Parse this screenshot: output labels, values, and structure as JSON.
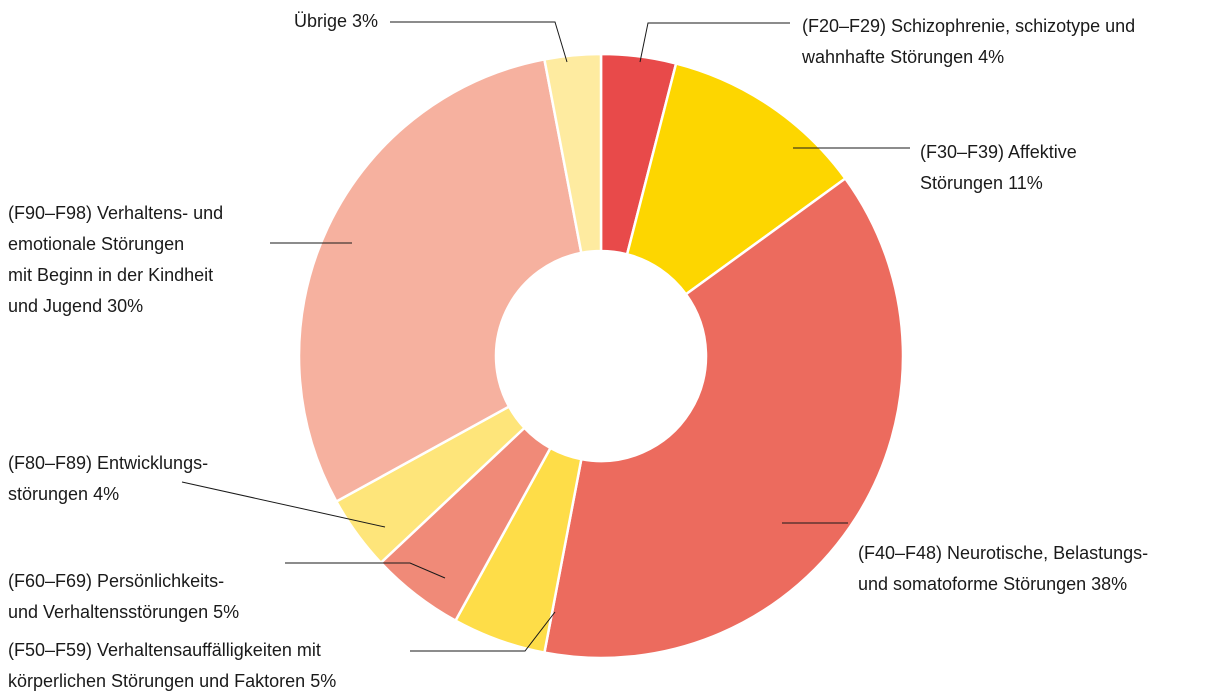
{
  "chart_data": {
    "type": "donut",
    "categories": [
      [
        "(F20–F29) Schizophrenie, schizotype und",
        "wahnhafte Störungen"
      ],
      [
        "(F30–F39) Affektive",
        "Störungen"
      ],
      [
        "(F40–F48) Neurotische, Belastungs-",
        "und somatoforme Störungen"
      ],
      [
        "(F50–F59) Verhaltensauffälligkeiten mit",
        "körperlichen Störungen und Faktoren"
      ],
      [
        "(F60–F69) Persönlichkeits-",
        "und Verhaltensstörungen"
      ],
      [
        "(F80–F89) Entwicklungs-",
        "störungen"
      ],
      [
        "(F90–F98) Verhaltens- und",
        "emotionale Störungen",
        "mit Beginn in der Kindheit",
        "und Jugend"
      ],
      [
        "Übrige"
      ]
    ],
    "values": [
      4,
      11,
      38,
      5,
      5,
      4,
      30,
      3
    ],
    "value_labels": [
      "4%",
      "11%",
      "38%",
      "5%",
      "5%",
      "4%",
      "30%",
      "3%"
    ],
    "colors": [
      "#e84a4a",
      "#fdd600",
      "#ec6b5e",
      "#fedd48",
      "#f08a78",
      "#fee57a",
      "#f6b19f",
      "#feeba0"
    ]
  }
}
